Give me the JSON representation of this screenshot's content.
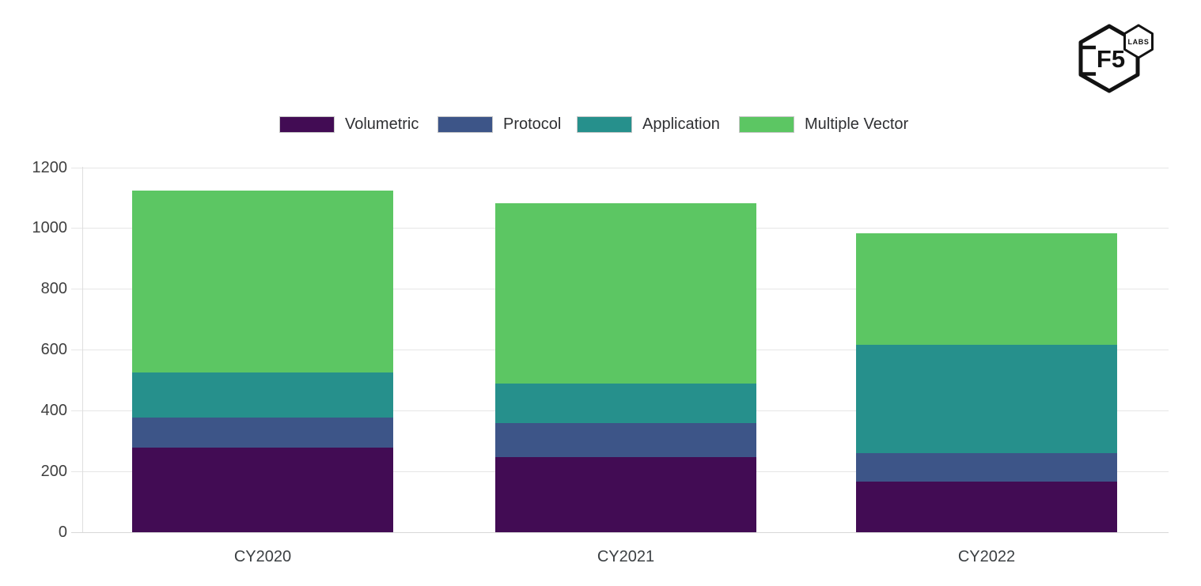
{
  "logo": {
    "brand": "F5",
    "sub": "LABS"
  },
  "chart_data": {
    "type": "bar",
    "stacked": true,
    "title": "",
    "xlabel": "",
    "ylabel": "",
    "categories": [
      "CY2020",
      "CY2021",
      "CY2022"
    ],
    "series": [
      {
        "name": "Volumetric",
        "color": "#420c54",
        "values": [
          278,
          246,
          166
        ]
      },
      {
        "name": "Protocol",
        "color": "#3d5588",
        "values": [
          100,
          113,
          94
        ]
      },
      {
        "name": "Application",
        "color": "#26908c",
        "values": [
          147,
          130,
          355
        ]
      },
      {
        "name": "Multiple Vector",
        "color": "#5cc663",
        "values": [
          598,
          592,
          369
        ]
      }
    ],
    "totals": [
      1123,
      1081,
      984
    ],
    "ylim": [
      0,
      1200
    ],
    "yticks": [
      0,
      200,
      400,
      600,
      800,
      1000,
      1200
    ],
    "grid": true,
    "legend_position": "top"
  }
}
